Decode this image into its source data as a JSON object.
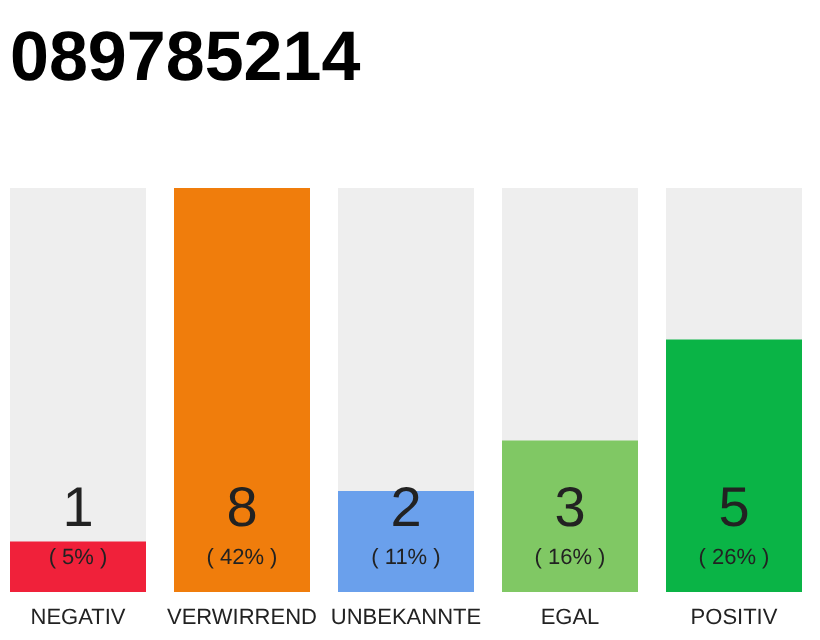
{
  "chart_data": {
    "type": "bar",
    "title": "089785214",
    "categories": [
      "NEGATIV",
      "VERWIRREND",
      "UNBEKANNTE",
      "EGAL",
      "POSITIV"
    ],
    "values": [
      1,
      8,
      2,
      3,
      5
    ],
    "colors": [
      "#f0213a",
      "#f07d0c",
      "#6aa0ec",
      "#80c864",
      "#0ab446"
    ],
    "data_labels": true,
    "annotations": [
      "( 5% )",
      "( 42% )",
      "( 11% )",
      "( 16% )",
      "( 26% )"
    ]
  }
}
